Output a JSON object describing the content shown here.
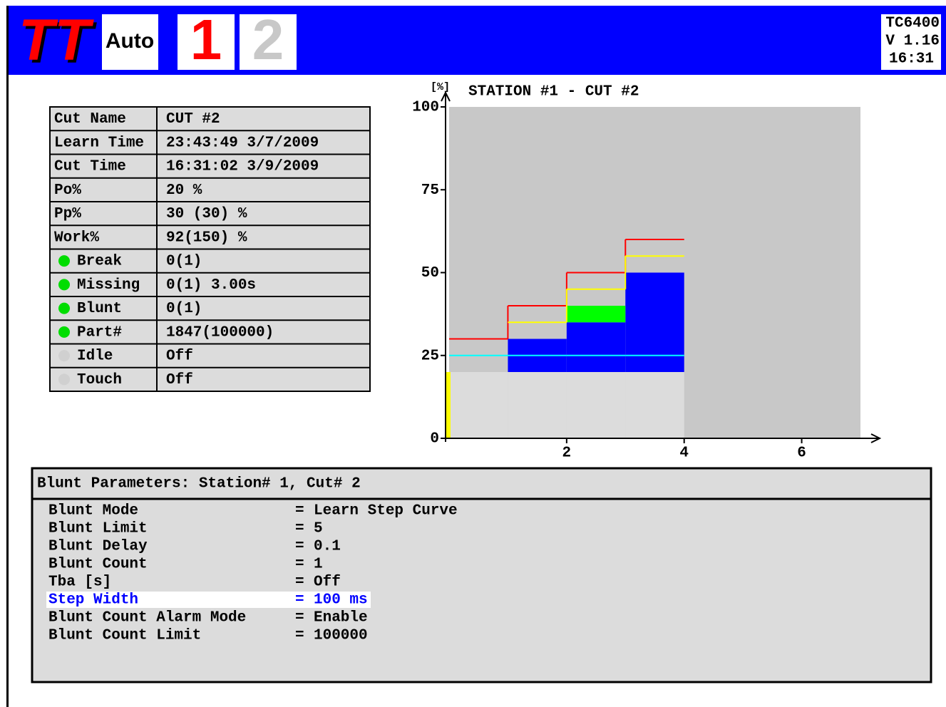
{
  "header": {
    "logo": "TT",
    "mode": "Auto",
    "stations": [
      "1",
      "2"
    ],
    "active_station": 0,
    "model": "TC6400",
    "version": "V 1.16",
    "time": "16:31"
  },
  "table": {
    "rows": [
      {
        "label": "Cut Name",
        "value": "CUT #2"
      },
      {
        "label": "Learn Time",
        "value": "23:43:49 3/7/2009"
      },
      {
        "label": "Cut Time",
        "value": "16:31:02 3/9/2009"
      },
      {
        "label": "Po%",
        "value": "20 %"
      },
      {
        "label": "Pp%",
        "value": "30 (30) %"
      },
      {
        "label": "Work%",
        "value": "92(150) %"
      },
      {
        "label": "Break",
        "value": "0(1)",
        "led": "#00dd00"
      },
      {
        "label": "Missing",
        "value": "0(1)  3.00s",
        "led": "#00dd00"
      },
      {
        "label": "Blunt",
        "value": "0(1)",
        "led": "#00dd00"
      },
      {
        "label": "Part#",
        "value": "1847(100000)",
        "led": "#00dd00"
      },
      {
        "label": "Idle",
        "value": "Off",
        "led": "#d0d0d0"
      },
      {
        "label": "Touch",
        "value": "Off",
        "led": "#d0d0d0"
      }
    ]
  },
  "chart_data": {
    "type": "step",
    "title": "STATION #1 - CUT #2",
    "ylabel": "[%]",
    "xlim": [
      0,
      7
    ],
    "ylim": [
      0,
      100
    ],
    "xticks": [
      2,
      4,
      6
    ],
    "yticks": [
      0,
      25,
      50,
      75,
      100
    ],
    "steps": [
      0,
      1,
      2,
      3,
      4
    ],
    "bands": [
      {
        "color": "#dcdcdc",
        "low": [
          0,
          0,
          0,
          0
        ],
        "high": [
          20,
          20,
          20,
          20
        ]
      },
      {
        "color": "#0000ff",
        "low": [
          null,
          20,
          20,
          20
        ],
        "high": [
          null,
          30,
          35,
          50
        ]
      },
      {
        "color": "#00ff00",
        "low": [
          null,
          null,
          35,
          null
        ],
        "high": [
          null,
          null,
          40,
          null
        ]
      }
    ],
    "series": [
      {
        "color": "#ff0000",
        "values": [
          30,
          40,
          50,
          60
        ]
      },
      {
        "color": "#ffff00",
        "values": [
          null,
          35,
          45,
          55
        ]
      },
      {
        "color": "#00ffff",
        "values": [
          25,
          25,
          25,
          25
        ]
      }
    ]
  },
  "params": {
    "title": "Blunt Parameters: Station# 1, Cut# 2",
    "separator": "=",
    "selected": 5,
    "rows": [
      {
        "name": "Blunt Mode",
        "value": "Learn Step Curve"
      },
      {
        "name": "Blunt Limit",
        "value": "5"
      },
      {
        "name": "Blunt Delay",
        "value": "0.1"
      },
      {
        "name": "Blunt Count",
        "value": "1"
      },
      {
        "name": "Tba [s]",
        "value": "Off"
      },
      {
        "name": "Step Width",
        "value": "100 ms"
      },
      {
        "name": "Blunt Count Alarm Mode",
        "value": "Enable"
      },
      {
        "name": "Blunt Count Limit",
        "value": "100000"
      }
    ]
  }
}
